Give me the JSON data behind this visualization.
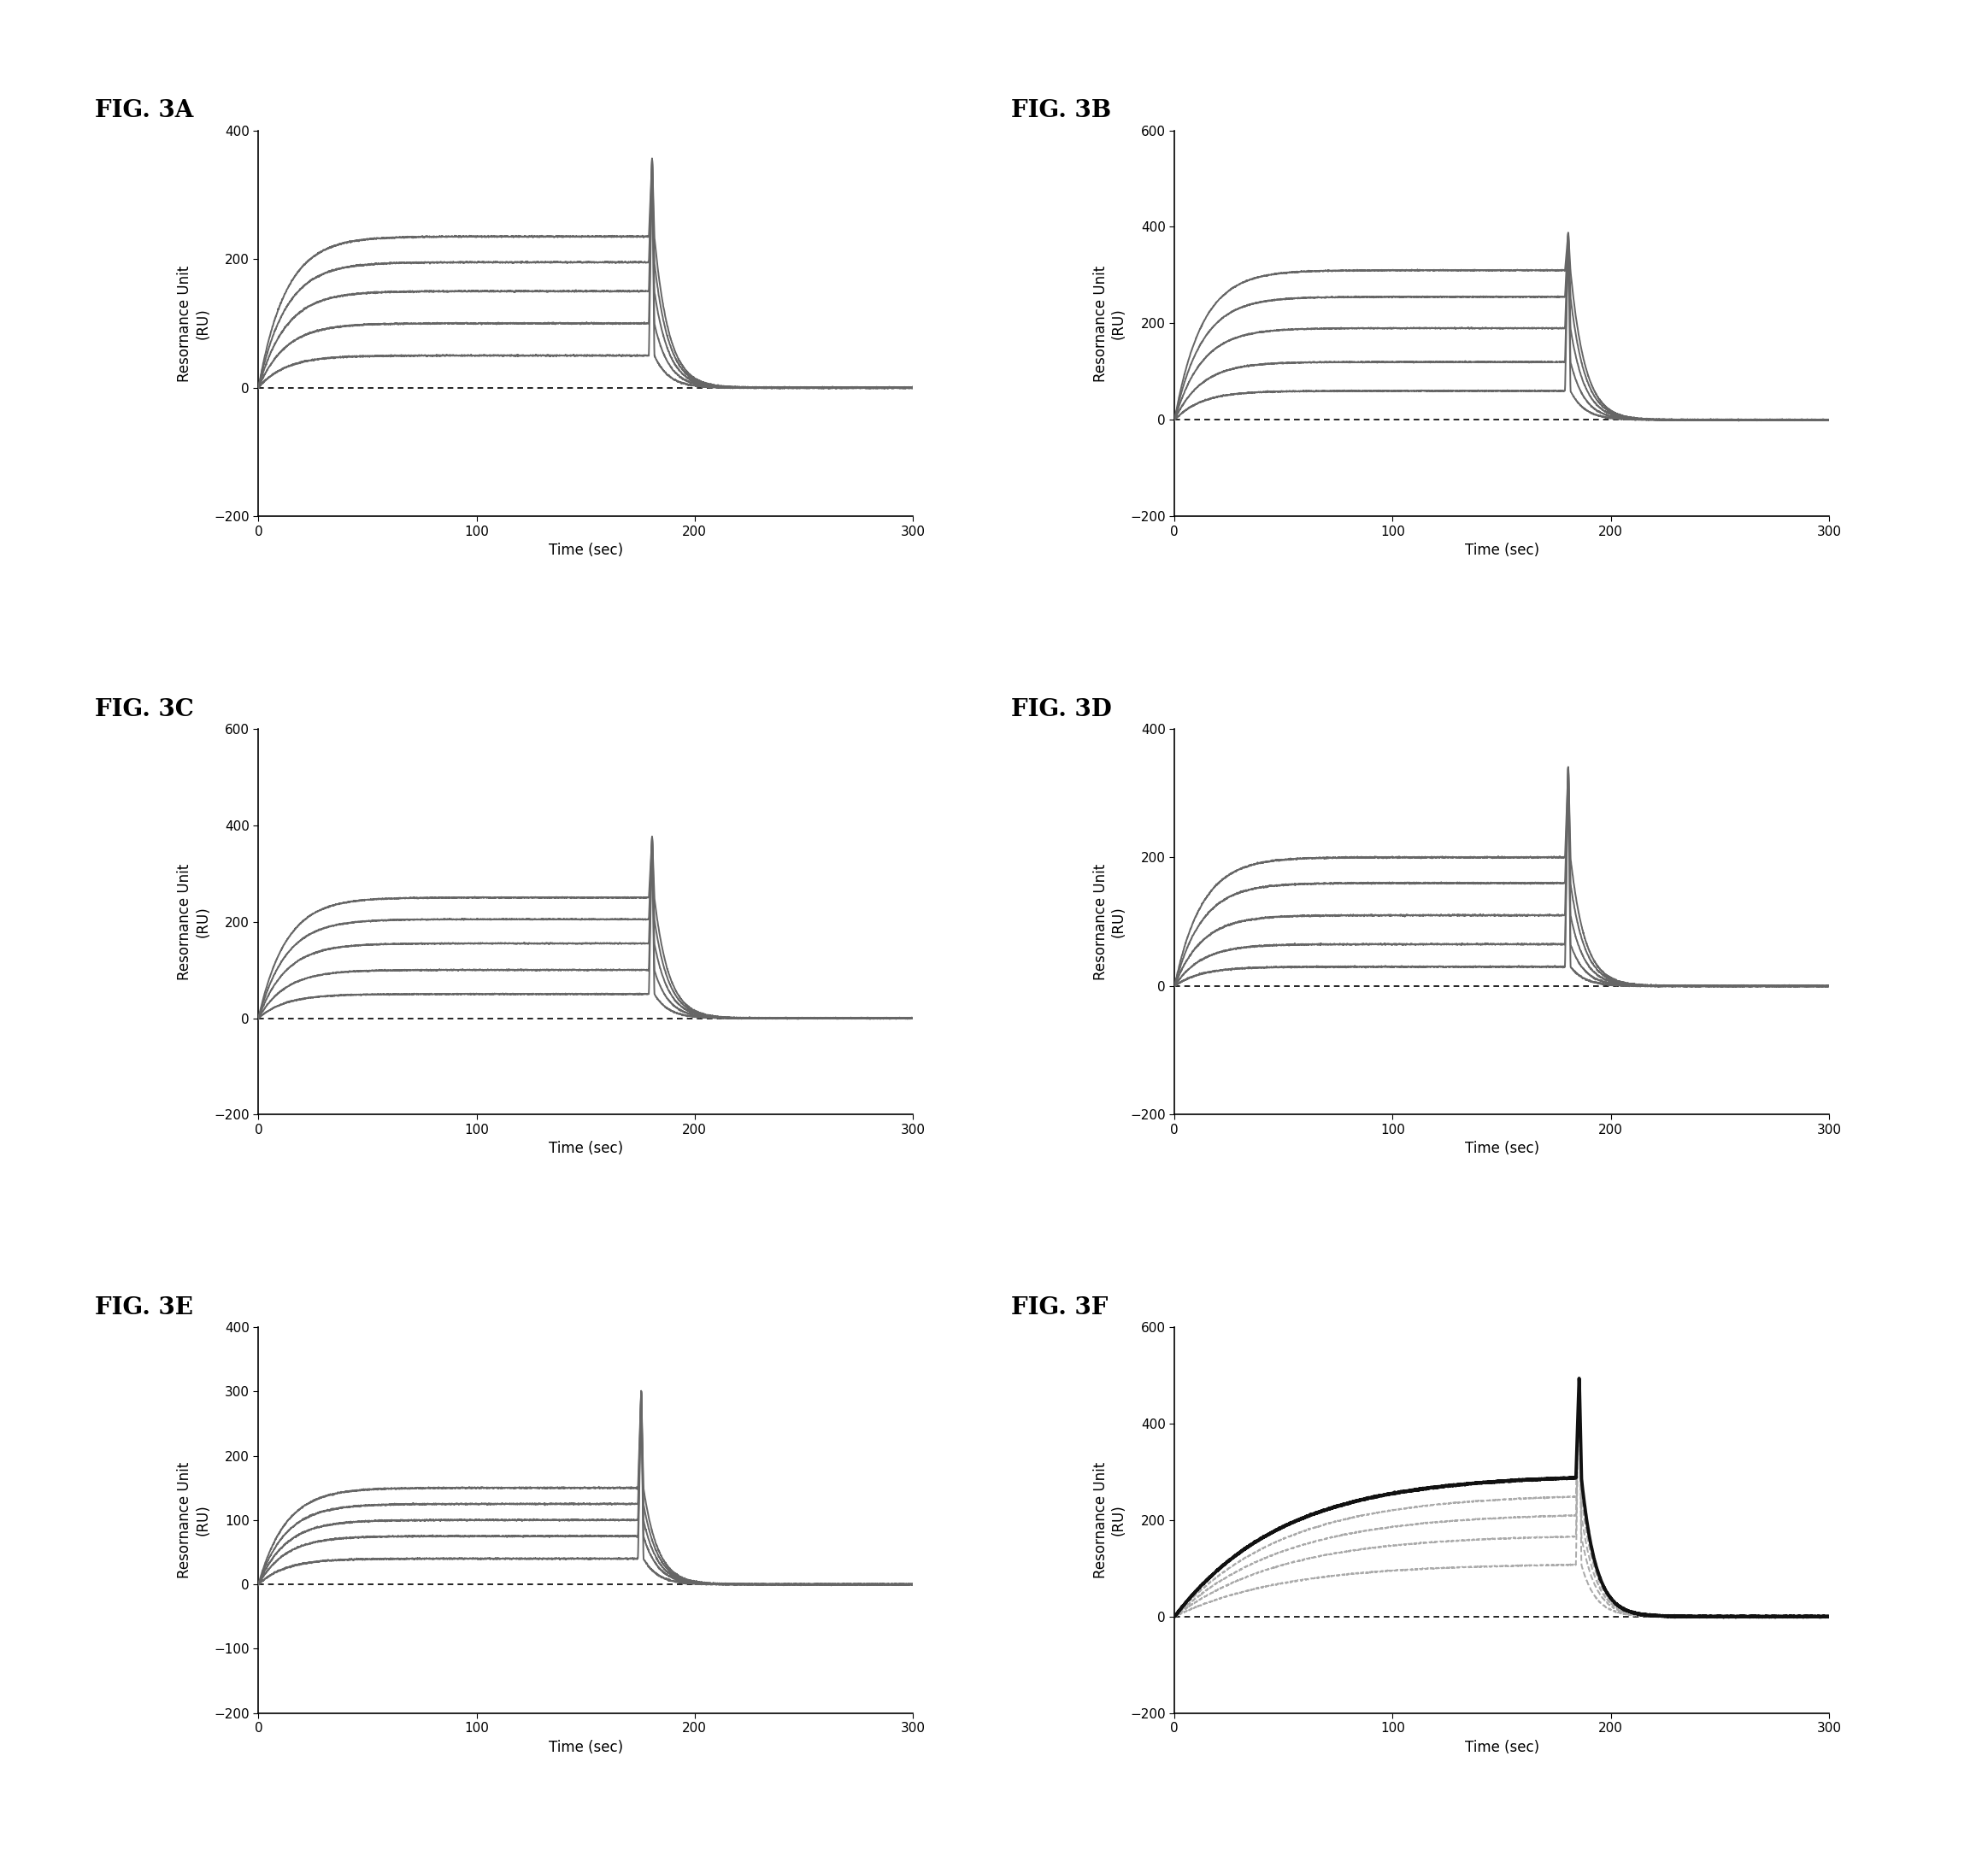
{
  "panels": [
    {
      "label": "FIG. 3A",
      "ylim": [
        -200,
        400
      ],
      "yticks": [
        -200,
        0,
        200,
        400
      ],
      "xlim": [
        0,
        300
      ],
      "xticks": [
        0,
        100,
        200,
        300
      ],
      "max_levels": [
        50,
        100,
        150,
        195,
        235
      ],
      "spike_height": 360,
      "spike_x": 180,
      "kon": 0.08,
      "koff": 0.15,
      "special": false
    },
    {
      "label": "FIG. 3B",
      "ylim": [
        -200,
        600
      ],
      "yticks": [
        -200,
        0,
        200,
        400,
        600
      ],
      "xlim": [
        0,
        300
      ],
      "xticks": [
        0,
        100,
        200,
        300
      ],
      "max_levels": [
        60,
        120,
        190,
        255,
        310
      ],
      "spike_height": 390,
      "spike_x": 180,
      "kon": 0.08,
      "koff": 0.15,
      "special": false
    },
    {
      "label": "FIG. 3C",
      "ylim": [
        -200,
        600
      ],
      "yticks": [
        -200,
        0,
        200,
        400,
        600
      ],
      "xlim": [
        0,
        300
      ],
      "xticks": [
        0,
        100,
        200,
        300
      ],
      "max_levels": [
        50,
        100,
        155,
        205,
        250
      ],
      "spike_height": 380,
      "spike_x": 180,
      "kon": 0.08,
      "koff": 0.15,
      "special": false
    },
    {
      "label": "FIG. 3D",
      "ylim": [
        -200,
        400
      ],
      "yticks": [
        -200,
        0,
        200,
        400
      ],
      "xlim": [
        0,
        300
      ],
      "xticks": [
        0,
        100,
        200,
        300
      ],
      "max_levels": [
        30,
        65,
        110,
        160,
        200
      ],
      "spike_height": 345,
      "spike_x": 180,
      "kon": 0.08,
      "koff": 0.15,
      "special": false
    },
    {
      "label": "FIG. 3E",
      "ylim": [
        -200,
        400
      ],
      "yticks": [
        -200,
        -100,
        0,
        100,
        200,
        300,
        400
      ],
      "xlim": [
        0,
        300
      ],
      "xticks": [
        0,
        100,
        200,
        300
      ],
      "max_levels": [
        40,
        75,
        100,
        125,
        150
      ],
      "spike_height": 305,
      "spike_x": 175,
      "kon": 0.08,
      "koff": 0.15,
      "special": false
    },
    {
      "label": "FIG. 3F",
      "ylim": [
        -200,
        600
      ],
      "yticks": [
        -200,
        0,
        200,
        400,
        600
      ],
      "xlim": [
        0,
        300
      ],
      "xticks": [
        0,
        100,
        200,
        300
      ],
      "max_levels": [
        110,
        170,
        215,
        255,
        295
      ],
      "spike_height": 500,
      "spike_x": 185,
      "kon": 0.02,
      "koff": 0.15,
      "special": true
    }
  ],
  "ylabel": "Resornance Unit\n(RU)",
  "xlabel": "Time (sec)",
  "bg_color": "#ffffff",
  "fig_label_fontsize": 20,
  "label_fontsize": 12,
  "tick_fontsize": 11,
  "line_color": "#666666",
  "line_color_bold": "#111111",
  "line_color_dashed": "#aaaaaa"
}
